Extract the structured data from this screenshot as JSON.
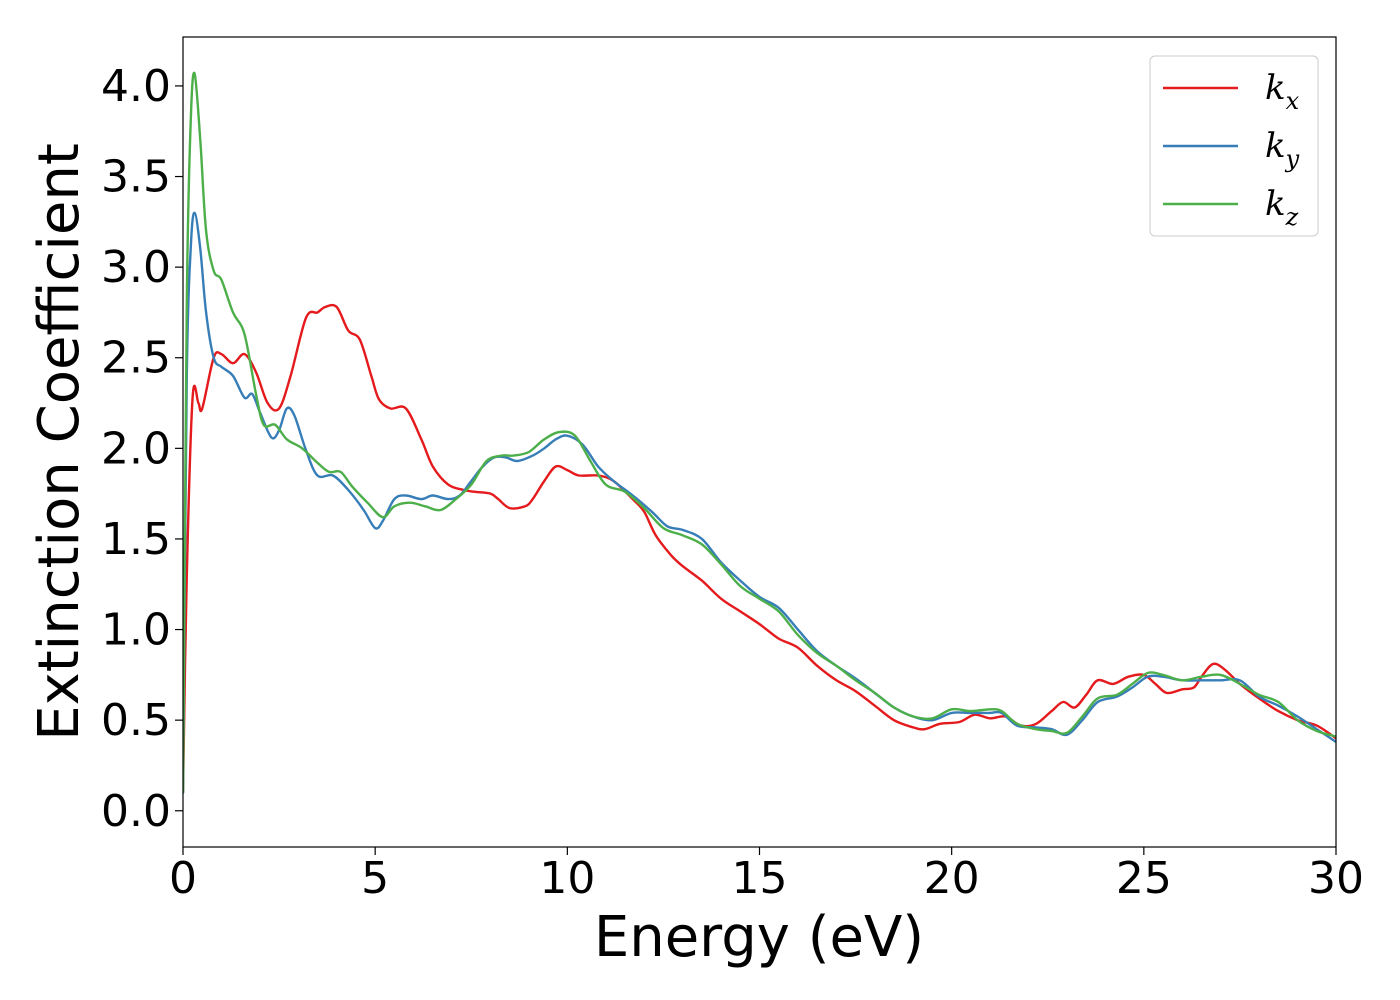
{
  "chart_data": {
    "type": "line",
    "xlabel": "Energy (eV)",
    "ylabel": "Extinction Coefficient",
    "xlim": [
      0,
      30
    ],
    "ylim": [
      -0.2,
      4.27
    ],
    "xticks": [
      "0",
      "5",
      "10",
      "15",
      "20",
      "25",
      "30"
    ],
    "xtick_values": [
      0,
      5,
      10,
      15,
      20,
      25,
      30
    ],
    "yticks": [
      "0.0",
      "0.5",
      "1.0",
      "1.5",
      "2.0",
      "2.5",
      "3.0",
      "3.5",
      "4.0"
    ],
    "ytick_values": [
      0,
      0.5,
      1.0,
      1.5,
      2.0,
      2.5,
      3.0,
      3.5,
      4.0
    ],
    "grid": false,
    "legend_position": "top-right",
    "series": [
      {
        "name": "k",
        "subscript": "x",
        "color": "#e41a1c",
        "points": [
          [
            0,
            0.1
          ],
          [
            0.1,
            1.3
          ],
          [
            0.25,
            2.28
          ],
          [
            0.4,
            2.25
          ],
          [
            0.5,
            2.22
          ],
          [
            0.8,
            2.5
          ],
          [
            1.0,
            2.52
          ],
          [
            1.3,
            2.47
          ],
          [
            1.6,
            2.52
          ],
          [
            1.9,
            2.42
          ],
          [
            2.2,
            2.25
          ],
          [
            2.5,
            2.22
          ],
          [
            2.8,
            2.4
          ],
          [
            3.2,
            2.72
          ],
          [
            3.5,
            2.75
          ],
          [
            3.7,
            2.78
          ],
          [
            4.0,
            2.78
          ],
          [
            4.3,
            2.65
          ],
          [
            4.6,
            2.6
          ],
          [
            4.9,
            2.4
          ],
          [
            5.1,
            2.27
          ],
          [
            5.4,
            2.22
          ],
          [
            5.8,
            2.22
          ],
          [
            6.2,
            2.05
          ],
          [
            6.5,
            1.9
          ],
          [
            6.9,
            1.8
          ],
          [
            7.3,
            1.77
          ],
          [
            7.6,
            1.76
          ],
          [
            8.0,
            1.75
          ],
          [
            8.2,
            1.72
          ],
          [
            8.5,
            1.67
          ],
          [
            8.9,
            1.68
          ],
          [
            9.1,
            1.72
          ],
          [
            9.4,
            1.82
          ],
          [
            9.7,
            1.9
          ],
          [
            10.0,
            1.88
          ],
          [
            10.3,
            1.85
          ],
          [
            10.8,
            1.85
          ],
          [
            11.2,
            1.82
          ],
          [
            11.7,
            1.72
          ],
          [
            12.0,
            1.65
          ],
          [
            12.3,
            1.52
          ],
          [
            12.7,
            1.41
          ],
          [
            13.0,
            1.35
          ],
          [
            13.5,
            1.27
          ],
          [
            14.0,
            1.17
          ],
          [
            14.5,
            1.1
          ],
          [
            15.0,
            1.03
          ],
          [
            15.5,
            0.95
          ],
          [
            16.0,
            0.9
          ],
          [
            16.5,
            0.8
          ],
          [
            17.0,
            0.72
          ],
          [
            17.5,
            0.66
          ],
          [
            18.0,
            0.58
          ],
          [
            18.5,
            0.5
          ],
          [
            19.0,
            0.46
          ],
          [
            19.3,
            0.45
          ],
          [
            19.7,
            0.48
          ],
          [
            20.2,
            0.49
          ],
          [
            20.6,
            0.53
          ],
          [
            21.0,
            0.51
          ],
          [
            21.4,
            0.52
          ],
          [
            21.8,
            0.47
          ],
          [
            22.2,
            0.48
          ],
          [
            22.6,
            0.55
          ],
          [
            22.9,
            0.6
          ],
          [
            23.2,
            0.57
          ],
          [
            23.5,
            0.64
          ],
          [
            23.8,
            0.72
          ],
          [
            24.2,
            0.7
          ],
          [
            24.6,
            0.74
          ],
          [
            25.0,
            0.75
          ],
          [
            25.3,
            0.7
          ],
          [
            25.6,
            0.65
          ],
          [
            26.0,
            0.67
          ],
          [
            26.3,
            0.68
          ],
          [
            26.5,
            0.74
          ],
          [
            26.8,
            0.81
          ],
          [
            27.1,
            0.78
          ],
          [
            27.5,
            0.7
          ],
          [
            28.0,
            0.62
          ],
          [
            28.5,
            0.55
          ],
          [
            29.0,
            0.5
          ],
          [
            29.5,
            0.47
          ],
          [
            30.0,
            0.4
          ]
        ]
      },
      {
        "name": "k",
        "subscript": "y",
        "color": "#377eb8",
        "points": [
          [
            0,
            0.1
          ],
          [
            0.1,
            2.4
          ],
          [
            0.2,
            3.1
          ],
          [
            0.3,
            3.3
          ],
          [
            0.45,
            3.1
          ],
          [
            0.6,
            2.75
          ],
          [
            0.8,
            2.5
          ],
          [
            1.0,
            2.45
          ],
          [
            1.3,
            2.4
          ],
          [
            1.6,
            2.28
          ],
          [
            1.8,
            2.3
          ],
          [
            2.0,
            2.2
          ],
          [
            2.3,
            2.06
          ],
          [
            2.5,
            2.1
          ],
          [
            2.7,
            2.22
          ],
          [
            2.9,
            2.18
          ],
          [
            3.2,
            1.99
          ],
          [
            3.5,
            1.85
          ],
          [
            3.9,
            1.85
          ],
          [
            4.3,
            1.77
          ],
          [
            4.7,
            1.66
          ],
          [
            5.0,
            1.56
          ],
          [
            5.2,
            1.6
          ],
          [
            5.5,
            1.72
          ],
          [
            5.8,
            1.74
          ],
          [
            6.2,
            1.72
          ],
          [
            6.5,
            1.74
          ],
          [
            6.9,
            1.72
          ],
          [
            7.2,
            1.74
          ],
          [
            7.5,
            1.82
          ],
          [
            7.8,
            1.9
          ],
          [
            8.1,
            1.95
          ],
          [
            8.4,
            1.95
          ],
          [
            8.7,
            1.93
          ],
          [
            9.1,
            1.96
          ],
          [
            9.4,
            2.0
          ],
          [
            9.7,
            2.05
          ],
          [
            10.0,
            2.07
          ],
          [
            10.4,
            2.02
          ],
          [
            10.8,
            1.9
          ],
          [
            11.2,
            1.82
          ],
          [
            11.7,
            1.74
          ],
          [
            12.2,
            1.65
          ],
          [
            12.6,
            1.57
          ],
          [
            13.0,
            1.55
          ],
          [
            13.5,
            1.5
          ],
          [
            14.0,
            1.37
          ],
          [
            14.5,
            1.27
          ],
          [
            15.0,
            1.18
          ],
          [
            15.5,
            1.12
          ],
          [
            16.0,
            1.0
          ],
          [
            16.5,
            0.88
          ],
          [
            17.0,
            0.8
          ],
          [
            17.5,
            0.73
          ],
          [
            18.0,
            0.65
          ],
          [
            18.5,
            0.57
          ],
          [
            19.0,
            0.52
          ],
          [
            19.5,
            0.5
          ],
          [
            20.0,
            0.54
          ],
          [
            20.5,
            0.54
          ],
          [
            21.0,
            0.54
          ],
          [
            21.3,
            0.54
          ],
          [
            21.7,
            0.47
          ],
          [
            22.2,
            0.46
          ],
          [
            22.6,
            0.45
          ],
          [
            23.0,
            0.42
          ],
          [
            23.4,
            0.5
          ],
          [
            23.8,
            0.6
          ],
          [
            24.3,
            0.63
          ],
          [
            24.7,
            0.68
          ],
          [
            25.1,
            0.74
          ],
          [
            25.5,
            0.74
          ],
          [
            26.0,
            0.72
          ],
          [
            26.5,
            0.72
          ],
          [
            27.0,
            0.72
          ],
          [
            27.5,
            0.72
          ],
          [
            28.0,
            0.63
          ],
          [
            28.5,
            0.58
          ],
          [
            29.0,
            0.52
          ],
          [
            29.5,
            0.45
          ],
          [
            30.0,
            0.38
          ]
        ]
      },
      {
        "name": "k",
        "subscript": "z",
        "color": "#4daf4a",
        "points": [
          [
            0,
            0.1
          ],
          [
            0.1,
            2.8
          ],
          [
            0.2,
            3.8
          ],
          [
            0.3,
            4.07
          ],
          [
            0.45,
            3.7
          ],
          [
            0.6,
            3.2
          ],
          [
            0.8,
            2.98
          ],
          [
            1.0,
            2.93
          ],
          [
            1.3,
            2.75
          ],
          [
            1.6,
            2.63
          ],
          [
            1.9,
            2.3
          ],
          [
            2.1,
            2.13
          ],
          [
            2.4,
            2.13
          ],
          [
            2.7,
            2.05
          ],
          [
            3.1,
            2.0
          ],
          [
            3.5,
            1.92
          ],
          [
            3.8,
            1.87
          ],
          [
            4.1,
            1.87
          ],
          [
            4.4,
            1.79
          ],
          [
            4.8,
            1.7
          ],
          [
            5.2,
            1.62
          ],
          [
            5.5,
            1.68
          ],
          [
            5.9,
            1.7
          ],
          [
            6.3,
            1.68
          ],
          [
            6.7,
            1.66
          ],
          [
            7.1,
            1.72
          ],
          [
            7.5,
            1.8
          ],
          [
            7.9,
            1.93
          ],
          [
            8.3,
            1.96
          ],
          [
            8.6,
            1.96
          ],
          [
            9.0,
            1.98
          ],
          [
            9.4,
            2.05
          ],
          [
            9.8,
            2.09
          ],
          [
            10.2,
            2.07
          ],
          [
            10.6,
            1.93
          ],
          [
            11.0,
            1.8
          ],
          [
            11.5,
            1.76
          ],
          [
            12.0,
            1.67
          ],
          [
            12.5,
            1.56
          ],
          [
            13.0,
            1.52
          ],
          [
            13.5,
            1.47
          ],
          [
            14.0,
            1.36
          ],
          [
            14.5,
            1.24
          ],
          [
            15.0,
            1.17
          ],
          [
            15.5,
            1.1
          ],
          [
            16.0,
            0.97
          ],
          [
            16.5,
            0.87
          ],
          [
            17.0,
            0.8
          ],
          [
            17.5,
            0.72
          ],
          [
            18.0,
            0.65
          ],
          [
            18.5,
            0.57
          ],
          [
            19.0,
            0.52
          ],
          [
            19.5,
            0.51
          ],
          [
            20.0,
            0.56
          ],
          [
            20.5,
            0.55
          ],
          [
            21.0,
            0.56
          ],
          [
            21.3,
            0.55
          ],
          [
            21.7,
            0.48
          ],
          [
            22.2,
            0.45
          ],
          [
            22.6,
            0.44
          ],
          [
            23.0,
            0.43
          ],
          [
            23.4,
            0.52
          ],
          [
            23.8,
            0.62
          ],
          [
            24.3,
            0.64
          ],
          [
            24.7,
            0.7
          ],
          [
            25.1,
            0.76
          ],
          [
            25.5,
            0.75
          ],
          [
            26.0,
            0.72
          ],
          [
            26.5,
            0.74
          ],
          [
            27.0,
            0.75
          ],
          [
            27.5,
            0.7
          ],
          [
            28.0,
            0.64
          ],
          [
            28.5,
            0.6
          ],
          [
            29.0,
            0.5
          ],
          [
            29.5,
            0.44
          ],
          [
            30.0,
            0.41
          ]
        ]
      }
    ]
  }
}
